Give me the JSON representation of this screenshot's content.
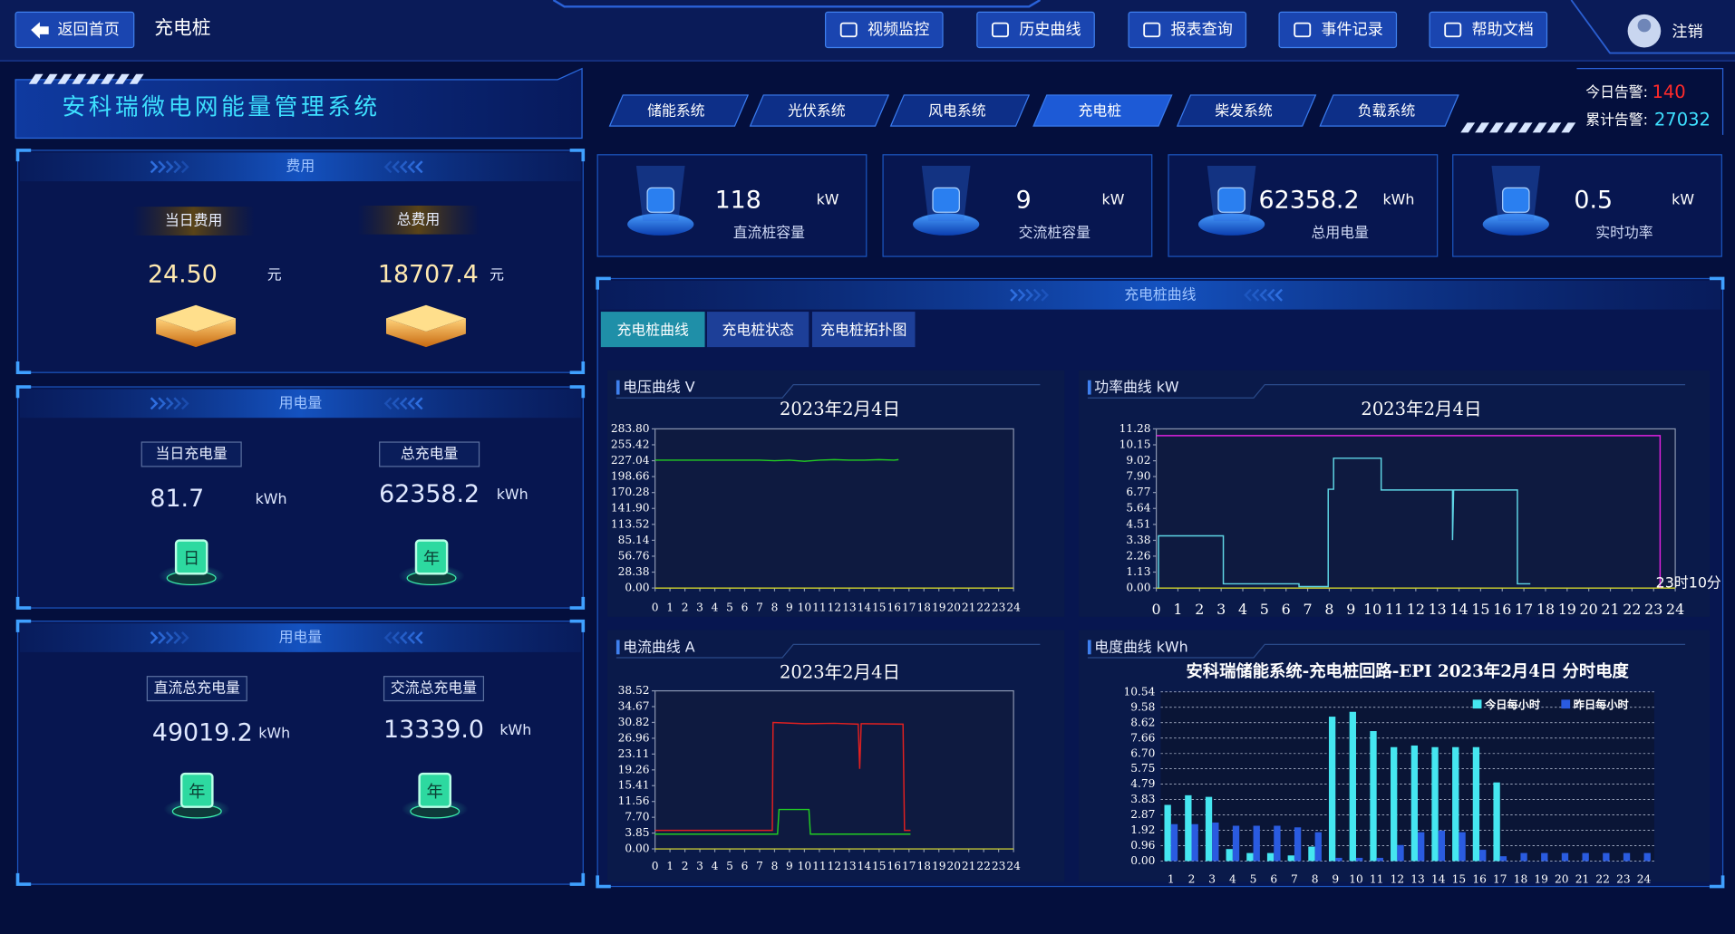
{
  "topbar": {
    "back": "返回首页",
    "page": "充电桩",
    "buttons": [
      "视频监控",
      "历史曲线",
      "报表查询",
      "事件记录",
      "帮助文档"
    ],
    "logout": "注销"
  },
  "header": {
    "title": "安科瑞微电网能量管理系统",
    "tabs": [
      "储能系统",
      "光伏系统",
      "风电系统",
      "充电桩",
      "柴发系统",
      "负载系统"
    ],
    "alarms": [
      {
        "label": "今日告警:",
        "value": "140"
      },
      {
        "label": "累计告警:",
        "value": "27032"
      }
    ]
  },
  "left_panels": [
    {
      "title": "费用",
      "items": [
        {
          "label": "当日费用",
          "value": "24.50",
          "unit": "元"
        },
        {
          "label": "总费用",
          "value": "18707.4",
          "unit": "元"
        }
      ]
    },
    {
      "title": "用电量",
      "items": [
        {
          "label": "当日充电量",
          "value": "81.7",
          "unit": "kWh",
          "icon": "日"
        },
        {
          "label": "总充电量",
          "value": "62358.2",
          "unit": "kWh",
          "icon": "年"
        }
      ]
    },
    {
      "title": "用电量",
      "items": [
        {
          "label": "直流总充电量",
          "value": "49019.2",
          "unit": "kWh",
          "icon": "年"
        },
        {
          "label": "交流总充电量",
          "value": "13339.0",
          "unit": "kWh",
          "icon": "年"
        }
      ]
    }
  ],
  "kpis": [
    {
      "value": "118",
      "unit": "kW",
      "label": "直流桩容量"
    },
    {
      "value": "9",
      "unit": "kW",
      "label": "交流桩容量"
    },
    {
      "value": "62358.2",
      "unit": "kWh",
      "label": "总用电量"
    },
    {
      "value": "0.5",
      "unit": "kW",
      "label": "实时功率"
    }
  ],
  "curve_panel": {
    "title": "充电桩曲线",
    "tabs": [
      "充电桩曲线",
      "充电桩状态",
      "充电桩拓扑图"
    ]
  },
  "chart_data": [
    {
      "type": "line",
      "panel_title": "电压曲线 V",
      "title": "2023年2月4日",
      "xlim": [
        0,
        24
      ],
      "xticks": [
        0,
        1,
        2,
        3,
        4,
        5,
        6,
        7,
        8,
        9,
        10,
        11,
        12,
        13,
        14,
        15,
        16,
        17,
        18,
        19,
        20,
        21,
        22,
        23,
        24
      ],
      "ylim": [
        0,
        283.8
      ],
      "yticks": [
        {
          "value": 0,
          "label": "0.00"
        },
        28.38,
        56.76,
        85.14,
        113.52,
        {
          "value": 141.9,
          "label": "141.90"
        },
        170.28,
        198.66,
        227.04,
        255.42,
        {
          "value": 283.8,
          "label": "283.80"
        }
      ],
      "series": [
        {
          "color": "#22cc22",
          "x": [
            0,
            1,
            2,
            3,
            4,
            5,
            6,
            7,
            8,
            9,
            10,
            11,
            12,
            13,
            14,
            15,
            16,
            16.3
          ],
          "values": [
            228,
            228,
            228,
            228,
            228,
            228,
            228,
            228,
            227,
            228,
            226,
            228,
            229,
            228,
            228,
            229,
            228,
            229
          ]
        }
      ]
    },
    {
      "type": "line",
      "panel_title": "功率曲线 kW",
      "title": "2023年2月4日",
      "annotation": "23时10分",
      "xlim": [
        0,
        24
      ],
      "xticks": [
        0,
        1,
        2,
        3,
        4,
        5,
        6,
        7,
        8,
        9,
        10,
        11,
        12,
        13,
        14,
        15,
        16,
        17,
        18,
        19,
        20,
        21,
        22,
        23,
        24
      ],
      "ylim": [
        0,
        11.28
      ],
      "yticks": [
        {
          "value": 0,
          "label": "0.00"
        },
        1.13,
        2.26,
        3.38,
        4.51,
        5.64,
        6.77,
        {
          "value": 7.9,
          "label": "7.90"
        },
        9.02,
        10.15,
        11.28
      ],
      "series": [
        {
          "color": "#5fd6e6",
          "x": [
            0.1,
            0.1,
            3.1,
            3.1,
            6.6,
            6.6,
            7.95,
            7.95,
            8.2,
            8.2,
            10.4,
            10.4,
            13.7,
            13.7,
            13.75,
            16.7,
            16.7,
            17.3
          ],
          "values": [
            0,
            3.7,
            3.7,
            0.3,
            0.3,
            0.1,
            0.1,
            7.0,
            7.0,
            9.2,
            9.2,
            6.95,
            6.95,
            3.4,
            6.95,
            6.95,
            0.3,
            0.3
          ]
        },
        {
          "color": "#e020e0",
          "x": [
            0,
            23.3,
            23.3
          ],
          "values": [
            10.8,
            10.8,
            0
          ]
        }
      ]
    },
    {
      "type": "line",
      "panel_title": "电流曲线 A",
      "title": "2023年2月4日",
      "xlim": [
        0,
        24
      ],
      "xticks": [
        0,
        1,
        2,
        3,
        4,
        5,
        6,
        7,
        8,
        9,
        10,
        11,
        12,
        13,
        14,
        15,
        16,
        17,
        18,
        19,
        20,
        21,
        22,
        23,
        24
      ],
      "ylim": [
        0,
        38.52
      ],
      "yticks": [
        {
          "value": 0,
          "label": "0.00"
        },
        3.85,
        {
          "value": 7.7,
          "label": "7.70"
        },
        11.56,
        15.41,
        19.26,
        23.11,
        26.96,
        30.82,
        34.67,
        38.52
      ],
      "series": [
        {
          "color": "#e02020",
          "x": [
            0,
            7.85,
            7.9,
            10,
            12,
            13.6,
            13.7,
            13.8,
            14,
            16.6,
            16.7,
            17.1
          ],
          "values": [
            4.5,
            4.5,
            30.8,
            30.5,
            30.6,
            30.4,
            19.5,
            30.5,
            30.5,
            30.4,
            4.5,
            4.5
          ]
        },
        {
          "color": "#22cc22",
          "x": [
            0,
            8.2,
            8.3,
            10.3,
            10.4,
            17.1
          ],
          "values": [
            3.6,
            3.6,
            9.6,
            9.6,
            3.6,
            3.6
          ]
        }
      ]
    },
    {
      "type": "bar",
      "panel_title": "电度曲线 kWh",
      "title": "安科瑞储能系统-充电桩回路-EPI 2023年2月4日 分时电度",
      "categories": [
        "1",
        "2",
        "3",
        "4",
        "5",
        "6",
        "7",
        "8",
        "9",
        "10",
        "11",
        "12",
        "13",
        "14",
        "15",
        "16",
        "17",
        "18",
        "19",
        "20",
        "21",
        "22",
        "23",
        "24"
      ],
      "ylim": [
        0,
        10.54
      ],
      "yticks": [
        {
          "value": 0,
          "label": "0.00"
        },
        0.96,
        1.92,
        2.87,
        3.83,
        4.79,
        5.75,
        {
          "value": 6.7,
          "label": "6.70"
        },
        7.66,
        8.62,
        9.58,
        10.54
      ],
      "grid": true,
      "series": [
        {
          "name": "今日每小时",
          "color": "#45e6f0",
          "values": [
            3.5,
            4.1,
            4.0,
            0.75,
            0.5,
            0.5,
            0.35,
            0.9,
            9.0,
            9.3,
            8.1,
            7.1,
            7.2,
            7.1,
            7.1,
            7.1,
            4.9,
            0,
            0,
            0,
            0,
            0,
            0,
            0
          ]
        },
        {
          "name": "昨日每小时",
          "color": "#2a5be0",
          "values": [
            2.3,
            2.3,
            2.4,
            2.2,
            2.2,
            2.2,
            2.1,
            1.8,
            0.2,
            0.2,
            0.2,
            1.0,
            1.8,
            1.9,
            1.8,
            0.7,
            0.3,
            0.5,
            0.5,
            0.5,
            0.5,
            0.5,
            0.5,
            0.5
          ]
        }
      ]
    }
  ]
}
